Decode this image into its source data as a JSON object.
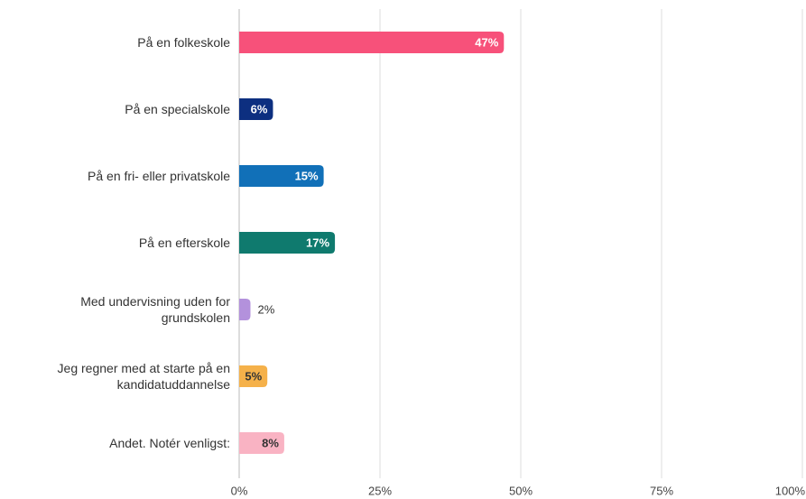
{
  "chart_data": {
    "type": "bar",
    "orientation": "horizontal",
    "categories": [
      "På en folkeskole",
      "På en specialskole",
      "På en fri- eller privatskole",
      "På en efterskole",
      "Med undervisning uden for grundskolen",
      "Jeg regner med at starte på en kandidatuddannelse",
      "Andet. Notér venligst:"
    ],
    "values": [
      47,
      6,
      15,
      17,
      2,
      5,
      8
    ],
    "value_labels": [
      "47%",
      "6%",
      "15%",
      "17%",
      "2%",
      "5%",
      "8%"
    ],
    "colors": [
      "#f7517a",
      "#0d2f80",
      "#1170b8",
      "#0f7a6e",
      "#b391dc",
      "#f5b14a",
      "#f9b3c3"
    ],
    "xlim": [
      0,
      100
    ],
    "xticks": [
      {
        "value": 0,
        "label": "0%"
      },
      {
        "value": 25,
        "label": "25%"
      },
      {
        "value": 50,
        "label": "50%"
      },
      {
        "value": 75,
        "label": "75%"
      },
      {
        "value": 100,
        "label": "100%"
      }
    ],
    "grid": true
  }
}
